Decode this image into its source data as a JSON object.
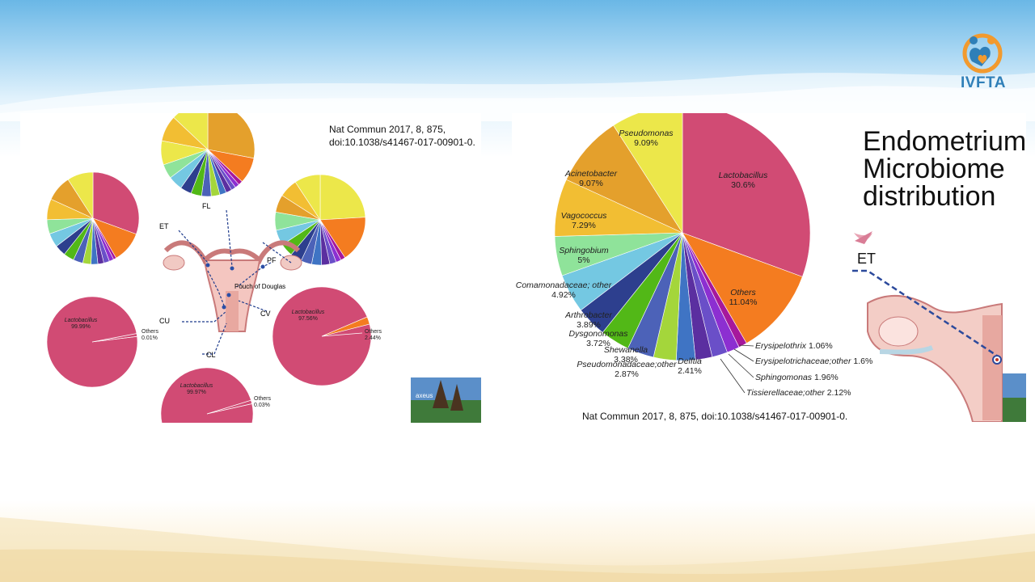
{
  "logo": {
    "text": "IVFTA",
    "icon": "family-heart-icon"
  },
  "left_panel": {
    "citation_line1": "Nat Commun 2017, 8, 875,",
    "citation_line2": "doi:10.1038/s41467-017-00901-0.",
    "site_labels": [
      "ET",
      "FL",
      "PF",
      "CV",
      "CU",
      "CL"
    ],
    "anatomy_label": "Pouch of Douglas",
    "thumbnail_text": "axeus"
  },
  "right_panel": {
    "title_lines": [
      "Endometrium",
      "Microbiome",
      "distribution"
    ],
    "citation": "Nat Commun 2017, 8, 875, doi:10.1038/s41467-017-00901-0.",
    "site_label": "ET"
  },
  "colors": {
    "lactobacillus": "#d14b74",
    "others": "#f47c20",
    "erysipelothrix": "#a6189c",
    "erysipelotrichaceae_other": "#8c2fd1",
    "sphingomonas": "#6a4fc8",
    "tissierellaceae_other": "#5b2fa0",
    "delftia": "#3f74c4",
    "pseudomonadaceae_other": "#a4d63b",
    "shewanella": "#4c62b8",
    "dysgonomonas": "#52b817",
    "arthrobacter": "#2d3f8e",
    "comamonadaceae_other": "#74c8e2",
    "sphingobium": "#8fe39a",
    "vagococcus": "#f2be33",
    "acinetobacter": "#e4a02c",
    "pseudomonas": "#ece74a"
  },
  "chart_data": [
    {
      "type": "pie",
      "title": "",
      "labels": [
        "Lactobacillus",
        "Others",
        "Erysipelothrix",
        "Erysipelotrichaceae;other",
        "Sphingomonas",
        "Tissierellaceae;other",
        "Delftia",
        "Pseudomonadaceae;other",
        "Shewanella",
        "Dysgonomonas",
        "Arthrobacter",
        "Comamonadaceae; other",
        "Sphingobium",
        "Vagococcus",
        "Acinetobacter",
        "Pseudomonas"
      ],
      "values": [
        30.6,
        11.04,
        1.06,
        1.6,
        1.96,
        2.12,
        2.41,
        2.87,
        3.38,
        3.72,
        3.89,
        4.92,
        5,
        7.29,
        9.07,
        9.09
      ],
      "value_labels": [
        "30.6%",
        "11.04%",
        "1.06%",
        "1.6%",
        "1.96%",
        "2.12%",
        "2.41%",
        "2.87%",
        "3.38%",
        "3.72%",
        "3.89%",
        "4.92%",
        "5%",
        "7.29%",
        "9.07%",
        "9.09%"
      ]
    },
    {
      "type": "pie",
      "title": "",
      "labels": [
        "Lactobacillus",
        "Others"
      ],
      "values": [
        99.99,
        0.01
      ],
      "value_labels": [
        "99.99%",
        "0.01%"
      ]
    },
    {
      "type": "pie",
      "title": "",
      "labels": [
        "Lactobacillus",
        "Others"
      ],
      "values": [
        97.56,
        2.44
      ],
      "value_labels": [
        "97.56%",
        "2.44%"
      ]
    },
    {
      "type": "pie",
      "title": "",
      "labels": [
        "Lactobacillus",
        "Others"
      ],
      "values": [
        99.97,
        0.03
      ],
      "value_labels": [
        "99.97%",
        "0.03%"
      ]
    }
  ]
}
